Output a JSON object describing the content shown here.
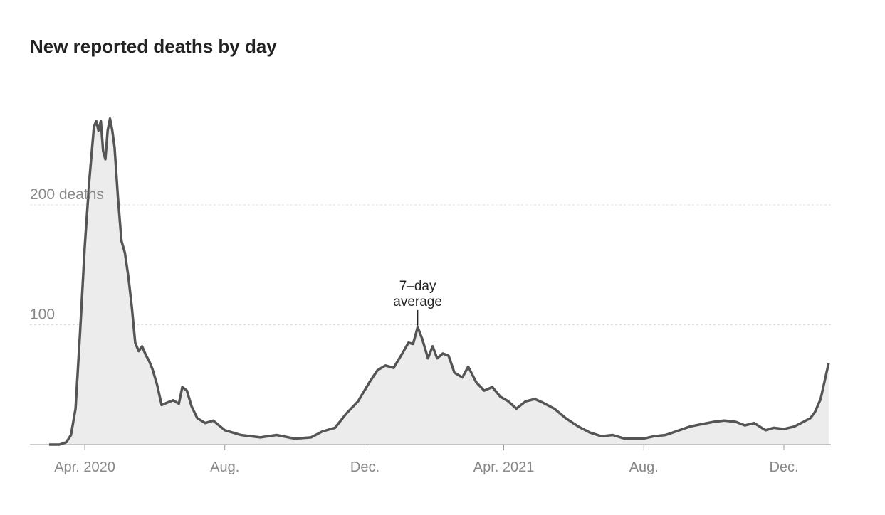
{
  "chart_data": {
    "type": "area",
    "title": "New reported deaths by day",
    "xlabel": "",
    "ylabel": "",
    "x_range": [
      "2020-03-01",
      "2021-12-31"
    ],
    "ylim": [
      0,
      280
    ],
    "y_ticks": [
      {
        "value": 100,
        "label": "100"
      },
      {
        "value": 200,
        "label": "200 deaths"
      }
    ],
    "x_ticks": [
      {
        "date": "2020-04-01",
        "label": "Apr. 2020"
      },
      {
        "date": "2020-08-01",
        "label": "Aug."
      },
      {
        "date": "2020-12-01",
        "label": "Dec."
      },
      {
        "date": "2021-04-01",
        "label": "Apr. 2021"
      },
      {
        "date": "2021-08-01",
        "label": "Aug."
      },
      {
        "date": "2021-12-01",
        "label": "Dec."
      }
    ],
    "grid": true,
    "series": [
      {
        "name": "7-day average",
        "points": [
          [
            "2020-03-01",
            0
          ],
          [
            "2020-03-10",
            0
          ],
          [
            "2020-03-16",
            2
          ],
          [
            "2020-03-20",
            8
          ],
          [
            "2020-03-24",
            30
          ],
          [
            "2020-03-28",
            95
          ],
          [
            "2020-04-01",
            165
          ],
          [
            "2020-04-05",
            220
          ],
          [
            "2020-04-09",
            265
          ],
          [
            "2020-04-11",
            270
          ],
          [
            "2020-04-13",
            262
          ],
          [
            "2020-04-15",
            270
          ],
          [
            "2020-04-17",
            245
          ],
          [
            "2020-04-19",
            238
          ],
          [
            "2020-04-21",
            262
          ],
          [
            "2020-04-23",
            272
          ],
          [
            "2020-04-25",
            262
          ],
          [
            "2020-04-27",
            248
          ],
          [
            "2020-04-30",
            205
          ],
          [
            "2020-05-03",
            170
          ],
          [
            "2020-05-06",
            160
          ],
          [
            "2020-05-09",
            140
          ],
          [
            "2020-05-12",
            115
          ],
          [
            "2020-05-15",
            85
          ],
          [
            "2020-05-18",
            78
          ],
          [
            "2020-05-21",
            82
          ],
          [
            "2020-05-24",
            75
          ],
          [
            "2020-05-27",
            70
          ],
          [
            "2020-05-30",
            63
          ],
          [
            "2020-06-03",
            50
          ],
          [
            "2020-06-07",
            33
          ],
          [
            "2020-06-12",
            35
          ],
          [
            "2020-06-17",
            37
          ],
          [
            "2020-06-22",
            34
          ],
          [
            "2020-06-25",
            48
          ],
          [
            "2020-06-29",
            45
          ],
          [
            "2020-07-03",
            32
          ],
          [
            "2020-07-08",
            22
          ],
          [
            "2020-07-15",
            18
          ],
          [
            "2020-07-22",
            20
          ],
          [
            "2020-08-01",
            12
          ],
          [
            "2020-08-15",
            8
          ],
          [
            "2020-09-01",
            6
          ],
          [
            "2020-09-15",
            8
          ],
          [
            "2020-10-01",
            5
          ],
          [
            "2020-10-15",
            6
          ],
          [
            "2020-10-25",
            11
          ],
          [
            "2020-11-05",
            14
          ],
          [
            "2020-11-15",
            26
          ],
          [
            "2020-11-25",
            36
          ],
          [
            "2020-12-05",
            52
          ],
          [
            "2020-12-12",
            62
          ],
          [
            "2020-12-19",
            66
          ],
          [
            "2020-12-26",
            64
          ],
          [
            "2021-01-02",
            75
          ],
          [
            "2021-01-08",
            85
          ],
          [
            "2021-01-12",
            84
          ],
          [
            "2021-01-16",
            98
          ],
          [
            "2021-01-20",
            88
          ],
          [
            "2021-01-25",
            72
          ],
          [
            "2021-01-29",
            82
          ],
          [
            "2021-02-02",
            72
          ],
          [
            "2021-02-07",
            76
          ],
          [
            "2021-02-12",
            74
          ],
          [
            "2021-02-17",
            60
          ],
          [
            "2021-02-24",
            56
          ],
          [
            "2021-03-01",
            65
          ],
          [
            "2021-03-08",
            52
          ],
          [
            "2021-03-15",
            45
          ],
          [
            "2021-03-22",
            48
          ],
          [
            "2021-03-29",
            40
          ],
          [
            "2021-04-05",
            36
          ],
          [
            "2021-04-12",
            30
          ],
          [
            "2021-04-20",
            36
          ],
          [
            "2021-04-28",
            38
          ],
          [
            "2021-05-05",
            35
          ],
          [
            "2021-05-15",
            30
          ],
          [
            "2021-05-25",
            22
          ],
          [
            "2021-06-05",
            15
          ],
          [
            "2021-06-15",
            10
          ],
          [
            "2021-06-25",
            7
          ],
          [
            "2021-07-05",
            8
          ],
          [
            "2021-07-15",
            5
          ],
          [
            "2021-07-25",
            5
          ],
          [
            "2021-08-01",
            5
          ],
          [
            "2021-08-10",
            7
          ],
          [
            "2021-08-20",
            8
          ],
          [
            "2021-09-01",
            12
          ],
          [
            "2021-09-10",
            15
          ],
          [
            "2021-09-20",
            17
          ],
          [
            "2021-10-01",
            19
          ],
          [
            "2021-10-10",
            20
          ],
          [
            "2021-10-20",
            19
          ],
          [
            "2021-10-28",
            16
          ],
          [
            "2021-11-05",
            18
          ],
          [
            "2021-11-10",
            15
          ],
          [
            "2021-11-15",
            12
          ],
          [
            "2021-11-22",
            14
          ],
          [
            "2021-12-01",
            13
          ],
          [
            "2021-12-10",
            15
          ],
          [
            "2021-12-18",
            19
          ],
          [
            "2021-12-24",
            22
          ],
          [
            "2021-12-28",
            27
          ],
          [
            "2022-01-02",
            38
          ],
          [
            "2022-01-06",
            55
          ],
          [
            "2022-01-09",
            68
          ]
        ]
      }
    ],
    "annotations": [
      {
        "date": "2021-01-16",
        "value": 98,
        "lines": [
          "7–day",
          "average"
        ]
      }
    ]
  }
}
